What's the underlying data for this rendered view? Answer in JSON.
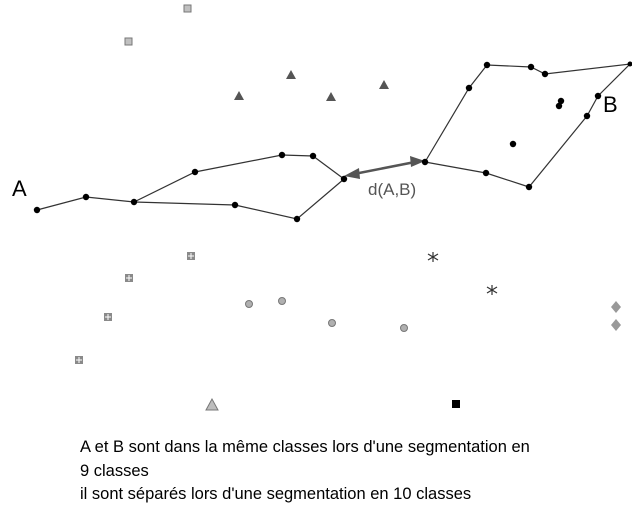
{
  "labels": {
    "point_a": "A",
    "point_b": "B",
    "distance": "d(A,B)"
  },
  "caption": {
    "line1": "A et B sont dans la même classes lors d'une segmentation en",
    "line2": "9 classes",
    "line3": "il sont séparés lors d'une segmentation en 10 classes"
  },
  "marker_shapes": [
    "dot",
    "square",
    "triangle",
    "circle",
    "star",
    "diamond"
  ],
  "colors": {
    "line": "#333333",
    "dot": "#000000",
    "distance_arrow": "#555555",
    "distance_label": "#555555",
    "light_square": "#c0c0c0",
    "dark_triangle": "#555555",
    "light_triangle": "#bdbdbd",
    "mid_square": "#8a8a8a",
    "circle": "#b0b0b0",
    "star": "#333333",
    "diamond": "#999999",
    "black_square": "#000000"
  }
}
